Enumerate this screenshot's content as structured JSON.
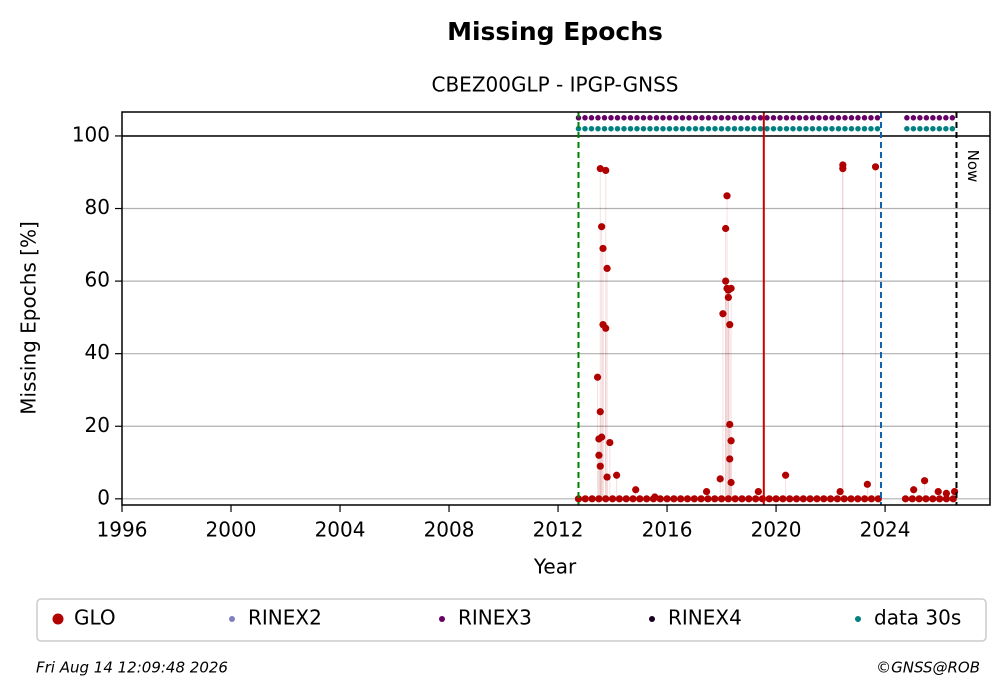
{
  "chart_data": {
    "type": "scatter",
    "title": "Missing Epochs",
    "subtitle": "CBEZ00GLP - IPGP-GNSS",
    "x_label": "Year",
    "y_label": "Missing Epochs [%]",
    "xlim": [
      1996,
      2027.85
    ],
    "ylim": [
      -1.7,
      106.6
    ],
    "xticks": [
      1996,
      2000,
      2004,
      2008,
      2012,
      2016,
      2020,
      2024
    ],
    "yticks": [
      0,
      20,
      40,
      60,
      80,
      100
    ],
    "grid": true,
    "hlines": [
      {
        "y": 100,
        "color": "#000000"
      }
    ],
    "vlines": [
      {
        "x": 2012.75,
        "color": "#008000",
        "dash": true
      },
      {
        "x": 2019.55,
        "color": "#cc0000",
        "dash": false
      },
      {
        "x": 2023.85,
        "color": "#1060b0",
        "dash": true
      },
      {
        "x": 2026.62,
        "color": "#000000",
        "dash": true
      }
    ],
    "annotations": [
      {
        "text": "Now",
        "x": 2026.62
      }
    ],
    "series": [
      {
        "name": "GLO",
        "kind": "scatter",
        "color": "#b00000",
        "x": [
          2013.45,
          2013.5,
          2013.5,
          2013.55,
          2013.55,
          2013.6,
          2013.55,
          2013.6,
          2013.65,
          2013.65,
          2013.75,
          2013.75,
          2013.8,
          2013.8,
          2013.9,
          2014.15,
          2014.85,
          2015.55,
          2017.45,
          2017.95,
          2018.05,
          2018.15,
          2018.2,
          2018.15,
          2018.2,
          2018.25,
          2018.25,
          2018.35,
          2018.3,
          2018.3,
          2018.35,
          2018.3,
          2018.35,
          2019.35,
          2020.35,
          2022.35,
          2022.45,
          2022.45,
          2023.35,
          2023.65,
          2025.05,
          2025.45,
          2025.95,
          2026.25,
          2026.55,
          2012.75,
          2013.0,
          2013.25,
          2013.5,
          2013.75,
          2014.0,
          2014.25,
          2014.5,
          2014.75,
          2015.0,
          2015.25,
          2015.5,
          2015.75,
          2016.0,
          2016.25,
          2016.5,
          2016.75,
          2017.0,
          2017.25,
          2017.5,
          2017.75,
          2018.0,
          2018.25,
          2018.5,
          2018.75,
          2019.0,
          2019.25,
          2019.5,
          2019.75,
          2020.0,
          2020.25,
          2020.5,
          2020.75,
          2021.0,
          2021.25,
          2021.5,
          2021.75,
          2022.0,
          2022.25,
          2022.5,
          2022.75,
          2023.0,
          2023.25,
          2023.5,
          2023.75,
          2024.75,
          2025.0,
          2025.25,
          2025.5,
          2025.75,
          2026.0,
          2026.25,
          2026.5
        ],
        "values": [
          33.5,
          16.5,
          12,
          9,
          24,
          17,
          91,
          75,
          69,
          48,
          47,
          90.5,
          63.5,
          6,
          15.5,
          6.5,
          2.5,
          0.5,
          2,
          5.5,
          51,
          74.5,
          83.5,
          60,
          58,
          55.5,
          57.5,
          58,
          48,
          20.5,
          16,
          11,
          4.5,
          2,
          6.5,
          2,
          92,
          91,
          4,
          91.5,
          2.5,
          5,
          2,
          1.5,
          2,
          0,
          0,
          0,
          0,
          0,
          0,
          0,
          0,
          0,
          0,
          0,
          0,
          0,
          0,
          0,
          0,
          0,
          0,
          0,
          0,
          0,
          0,
          0,
          0,
          0,
          0,
          0,
          0,
          0,
          0,
          0,
          0,
          0,
          0,
          0,
          0,
          0,
          0,
          0,
          0,
          0,
          0,
          0,
          0,
          0,
          0,
          0,
          0,
          0,
          0,
          0,
          0,
          0
        ]
      },
      {
        "name": "RINEX2",
        "kind": "band",
        "color": "#8080c0",
        "x": [],
        "values": []
      },
      {
        "name": "RINEX3",
        "kind": "band",
        "color": "#660066",
        "x": [
          2012.75,
          2023.9,
          2024.3,
          2024.8,
          2026.6
        ],
        "values": [
          105,
          105,
          null,
          105,
          105
        ]
      },
      {
        "name": "RINEX4",
        "kind": "band",
        "color": "#1a0020",
        "x": [],
        "values": []
      },
      {
        "name": "data 30s",
        "kind": "band",
        "color": "#008080",
        "x": [
          2012.75,
          2023.9,
          2024.3,
          2024.8,
          2026.6
        ],
        "values": [
          102,
          102,
          null,
          102,
          102
        ]
      }
    ],
    "footer_left": "Fri Aug 14 12:09:48 2026",
    "footer_right": "©GNSS@ROB"
  }
}
